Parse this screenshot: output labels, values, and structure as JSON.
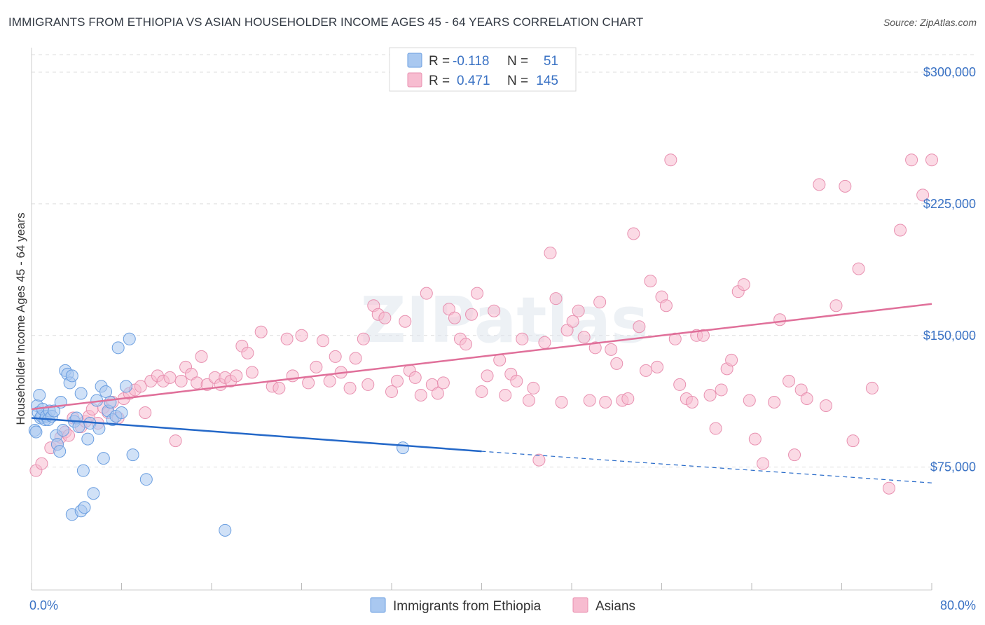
{
  "header": {
    "title": "IMMIGRANTS FROM ETHIOPIA VS ASIAN HOUSEHOLDER INCOME AGES 45 - 64 YEARS CORRELATION CHART",
    "source": "Source: ZipAtlas.com"
  },
  "watermark": "ZIPatlas",
  "legend": {
    "rows": [
      {
        "r_label": "R = ",
        "r_value": "-0.118",
        "n_label": "N = ",
        "n_value": "51"
      },
      {
        "r_label": "R = ",
        "r_value": "0.471",
        "n_label": "N = ",
        "n_value": "145"
      }
    ]
  },
  "colors": {
    "blue_fill": "#a9c8f0",
    "blue_stroke": "#6a9ee0",
    "blue_line": "#2468c8",
    "pink_fill": "#f7bcd0",
    "pink_stroke": "#e890b0",
    "pink_line": "#e0709a",
    "grid": "#dddddd",
    "axis_label": "#3a72c4"
  },
  "chart_data": {
    "type": "scatter",
    "title": "IMMIGRANTS FROM ETHIOPIA VS ASIAN HOUSEHOLDER INCOME AGES 45 - 64 YEARS CORRELATION CHART",
    "xlabel": "",
    "ylabel": "Householder Income Ages 45 - 64 years",
    "x_tick_labels": [
      "0.0%",
      "80.0%"
    ],
    "y_tick_labels": [
      "$75,000",
      "$150,000",
      "$225,000",
      "$300,000"
    ],
    "y_ticks": [
      75000,
      150000,
      225000,
      300000
    ],
    "xlim": [
      0,
      80
    ],
    "ylim": [
      5000,
      310000
    ],
    "grid": true,
    "legend_position": "top-center",
    "series": [
      {
        "name": "Immigrants from Ethiopia",
        "color": "#a9c8f0",
        "trend": {
          "x": [
            0,
            40
          ],
          "y": [
            103000,
            84000
          ],
          "dashed_to": [
            80,
            66000
          ]
        },
        "points": [
          [
            0.3,
            96000
          ],
          [
            0.4,
            95000
          ],
          [
            0.5,
            110000
          ],
          [
            0.6,
            106000
          ],
          [
            0.7,
            116000
          ],
          [
            0.8,
            103000
          ],
          [
            0.9,
            104000
          ],
          [
            1.0,
            108000
          ],
          [
            1.2,
            102000
          ],
          [
            1.3,
            104000
          ],
          [
            1.5,
            102000
          ],
          [
            1.6,
            107000
          ],
          [
            1.8,
            104000
          ],
          [
            2.0,
            107000
          ],
          [
            2.2,
            93000
          ],
          [
            2.3,
            88000
          ],
          [
            2.5,
            84000
          ],
          [
            2.6,
            112000
          ],
          [
            2.8,
            96000
          ],
          [
            3.0,
            130000
          ],
          [
            3.2,
            128000
          ],
          [
            3.4,
            123000
          ],
          [
            3.6,
            127000
          ],
          [
            3.8,
            101000
          ],
          [
            4.0,
            103000
          ],
          [
            4.2,
            98000
          ],
          [
            4.4,
            117000
          ],
          [
            4.6,
            73000
          ],
          [
            3.6,
            48000
          ],
          [
            4.4,
            50000
          ],
          [
            4.7,
            52000
          ],
          [
            5.0,
            91000
          ],
          [
            5.2,
            100000
          ],
          [
            5.5,
            60000
          ],
          [
            5.8,
            113000
          ],
          [
            6.0,
            97000
          ],
          [
            6.2,
            121000
          ],
          [
            6.4,
            80000
          ],
          [
            6.6,
            118000
          ],
          [
            6.8,
            107000
          ],
          [
            7.0,
            112000
          ],
          [
            7.2,
            102000
          ],
          [
            7.5,
            104000
          ],
          [
            7.7,
            143000
          ],
          [
            8.0,
            106000
          ],
          [
            8.4,
            121000
          ],
          [
            8.7,
            148000
          ],
          [
            9.0,
            82000
          ],
          [
            10.2,
            68000
          ],
          [
            17.2,
            39000
          ],
          [
            33.0,
            86000
          ]
        ]
      },
      {
        "name": "Asians",
        "color": "#f7bcd0",
        "trend": {
          "x": [
            0,
            80
          ],
          "y": [
            108000,
            168000
          ]
        },
        "points": [
          [
            0.4,
            73000
          ],
          [
            0.9,
            77000
          ],
          [
            1.7,
            86000
          ],
          [
            2.3,
            88000
          ],
          [
            2.6,
            92000
          ],
          [
            3.0,
            95000
          ],
          [
            3.3,
            93000
          ],
          [
            3.7,
            103000
          ],
          [
            4.4,
            98000
          ],
          [
            4.8,
            101000
          ],
          [
            5.1,
            104000
          ],
          [
            5.4,
            108000
          ],
          [
            5.9,
            100000
          ],
          [
            6.4,
            109000
          ],
          [
            6.8,
            106000
          ],
          [
            7.2,
            112000
          ],
          [
            7.7,
            103000
          ],
          [
            8.2,
            114000
          ],
          [
            8.7,
            117000
          ],
          [
            9.2,
            119000
          ],
          [
            9.7,
            121000
          ],
          [
            10.1,
            106000
          ],
          [
            10.6,
            124000
          ],
          [
            11.2,
            127000
          ],
          [
            11.7,
            124000
          ],
          [
            12.3,
            126000
          ],
          [
            12.8,
            90000
          ],
          [
            13.3,
            124000
          ],
          [
            13.7,
            132000
          ],
          [
            14.2,
            128000
          ],
          [
            14.7,
            123000
          ],
          [
            15.1,
            138000
          ],
          [
            15.6,
            122000
          ],
          [
            16.3,
            126000
          ],
          [
            16.8,
            122000
          ],
          [
            17.2,
            126000
          ],
          [
            17.7,
            124000
          ],
          [
            18.2,
            127000
          ],
          [
            18.7,
            144000
          ],
          [
            19.2,
            140000
          ],
          [
            19.6,
            129000
          ],
          [
            20.4,
            152000
          ],
          [
            21.4,
            121000
          ],
          [
            22.0,
            120000
          ],
          [
            22.7,
            148000
          ],
          [
            23.2,
            127000
          ],
          [
            24.0,
            150000
          ],
          [
            24.6,
            123000
          ],
          [
            25.3,
            132000
          ],
          [
            25.9,
            147000
          ],
          [
            26.5,
            124000
          ],
          [
            27.0,
            138000
          ],
          [
            27.5,
            129000
          ],
          [
            28.3,
            120000
          ],
          [
            28.8,
            137000
          ],
          [
            29.5,
            148000
          ],
          [
            29.9,
            122000
          ],
          [
            30.4,
            167000
          ],
          [
            30.8,
            162000
          ],
          [
            31.4,
            160000
          ],
          [
            32.0,
            118000
          ],
          [
            32.5,
            124000
          ],
          [
            33.2,
            158000
          ],
          [
            33.6,
            130000
          ],
          [
            34.1,
            126000
          ],
          [
            34.6,
            116000
          ],
          [
            35.1,
            174000
          ],
          [
            35.6,
            122000
          ],
          [
            36.1,
            117000
          ],
          [
            36.6,
            123000
          ],
          [
            37.1,
            165000
          ],
          [
            37.6,
            160000
          ],
          [
            38.1,
            148000
          ],
          [
            38.6,
            145000
          ],
          [
            39.1,
            162000
          ],
          [
            39.6,
            174000
          ],
          [
            40.0,
            118000
          ],
          [
            40.5,
            127000
          ],
          [
            41.1,
            164000
          ],
          [
            41.6,
            136000
          ],
          [
            42.1,
            116000
          ],
          [
            42.6,
            128000
          ],
          [
            43.1,
            124000
          ],
          [
            43.6,
            148000
          ],
          [
            44.2,
            113000
          ],
          [
            44.6,
            120000
          ],
          [
            45.1,
            79000
          ],
          [
            45.6,
            146000
          ],
          [
            46.1,
            197000
          ],
          [
            46.6,
            171000
          ],
          [
            47.1,
            112000
          ],
          [
            47.6,
            153000
          ],
          [
            48.1,
            158000
          ],
          [
            48.6,
            164000
          ],
          [
            49.1,
            149000
          ],
          [
            49.6,
            113000
          ],
          [
            50.1,
            143000
          ],
          [
            50.5,
            169000
          ],
          [
            51.0,
            112000
          ],
          [
            51.5,
            142000
          ],
          [
            52.0,
            134000
          ],
          [
            52.5,
            113000
          ],
          [
            53.0,
            114000
          ],
          [
            53.5,
            208000
          ],
          [
            54.0,
            155000
          ],
          [
            54.6,
            130000
          ],
          [
            55.0,
            181000
          ],
          [
            55.6,
            132000
          ],
          [
            56.0,
            172000
          ],
          [
            56.4,
            167000
          ],
          [
            56.8,
            250000
          ],
          [
            57.2,
            148000
          ],
          [
            57.6,
            122000
          ],
          [
            58.2,
            114000
          ],
          [
            58.7,
            112000
          ],
          [
            59.1,
            150000
          ],
          [
            59.7,
            150000
          ],
          [
            60.3,
            116000
          ],
          [
            60.8,
            97000
          ],
          [
            61.3,
            119000
          ],
          [
            61.8,
            131000
          ],
          [
            62.2,
            136000
          ],
          [
            62.8,
            175000
          ],
          [
            63.3,
            179000
          ],
          [
            63.8,
            113000
          ],
          [
            64.3,
            91000
          ],
          [
            65.0,
            77000
          ],
          [
            66.0,
            112000
          ],
          [
            66.5,
            159000
          ],
          [
            67.3,
            124000
          ],
          [
            67.8,
            82000
          ],
          [
            68.4,
            119000
          ],
          [
            68.9,
            114000
          ],
          [
            70.0,
            236000
          ],
          [
            70.6,
            110000
          ],
          [
            71.5,
            167000
          ],
          [
            72.3,
            235000
          ],
          [
            73.0,
            90000
          ],
          [
            73.5,
            188000
          ],
          [
            74.7,
            120000
          ],
          [
            76.2,
            63000
          ],
          [
            77.2,
            210000
          ],
          [
            78.2,
            250000
          ],
          [
            79.2,
            230000
          ],
          [
            80.0,
            250000
          ]
        ]
      }
    ]
  }
}
